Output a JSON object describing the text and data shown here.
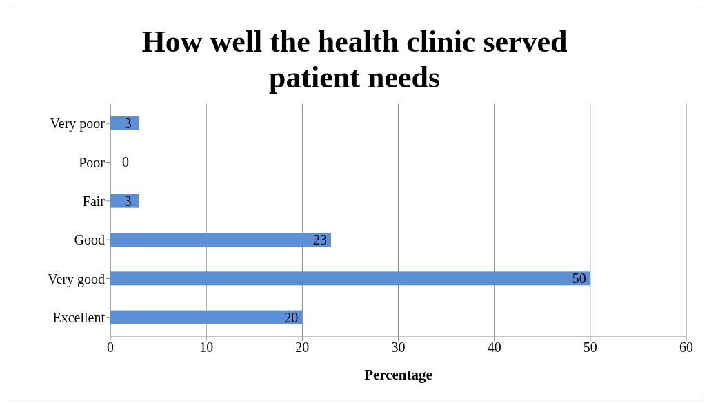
{
  "chart_data": {
    "type": "bar",
    "orientation": "horizontal",
    "title": "How well the health clinic served patient needs",
    "xlabel": "Percentage",
    "categories": [
      "Very poor",
      "Poor",
      "Fair",
      "Good",
      "Very good",
      "Excellent"
    ],
    "values": [
      3,
      0,
      3,
      23,
      50,
      20
    ],
    "color": "#5b8fd6",
    "xlim": [
      0,
      60
    ],
    "xticks": [
      0,
      10,
      20,
      30,
      40,
      50,
      60
    ],
    "grid": "x",
    "data_labels": true
  }
}
